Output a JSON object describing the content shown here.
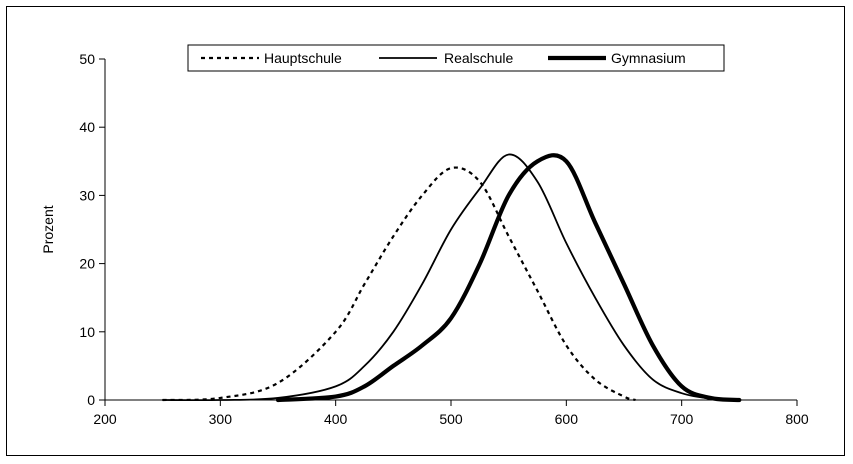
{
  "chart_data": {
    "type": "line",
    "title": "",
    "xlabel": "",
    "ylabel": "Prozent",
    "xlim": [
      200,
      800
    ],
    "ylim": [
      0,
      50
    ],
    "x_ticks": [
      "200",
      "300",
      "400",
      "500",
      "600",
      "700",
      "800"
    ],
    "y_ticks": [
      "0",
      "10",
      "20",
      "30",
      "40",
      "50"
    ],
    "legend_position": "top-center",
    "grid": false,
    "series": [
      {
        "name": "Hauptschule",
        "style": "dotted",
        "color": "#000000",
        "x": [
          250,
          300,
          350,
          400,
          425,
          450,
          475,
          500,
          525,
          550,
          575,
          600,
          625,
          650,
          660
        ],
        "y": [
          0,
          0.3,
          2.5,
          10,
          17,
          24,
          30,
          34,
          32,
          24,
          16,
          8,
          3,
          0.5,
          0
        ]
      },
      {
        "name": "Realschule",
        "style": "thin",
        "color": "#000000",
        "x": [
          250,
          300,
          350,
          400,
          425,
          450,
          475,
          500,
          525,
          550,
          575,
          600,
          625,
          650,
          675,
          700,
          725,
          750
        ],
        "y": [
          0,
          0,
          0.3,
          2,
          5,
          10,
          17,
          25,
          31,
          36,
          32,
          23,
          15,
          8,
          3,
          1,
          0.2,
          0
        ]
      },
      {
        "name": "Gymnasium",
        "style": "thick",
        "color": "#000000",
        "x": [
          350,
          400,
          425,
          450,
          475,
          500,
          525,
          550,
          575,
          600,
          625,
          650,
          675,
          700,
          725,
          750
        ],
        "y": [
          0,
          0.5,
          2,
          5,
          8,
          12,
          20,
          30,
          35,
          35,
          26,
          17,
          8,
          2,
          0.3,
          0
        ]
      }
    ]
  }
}
